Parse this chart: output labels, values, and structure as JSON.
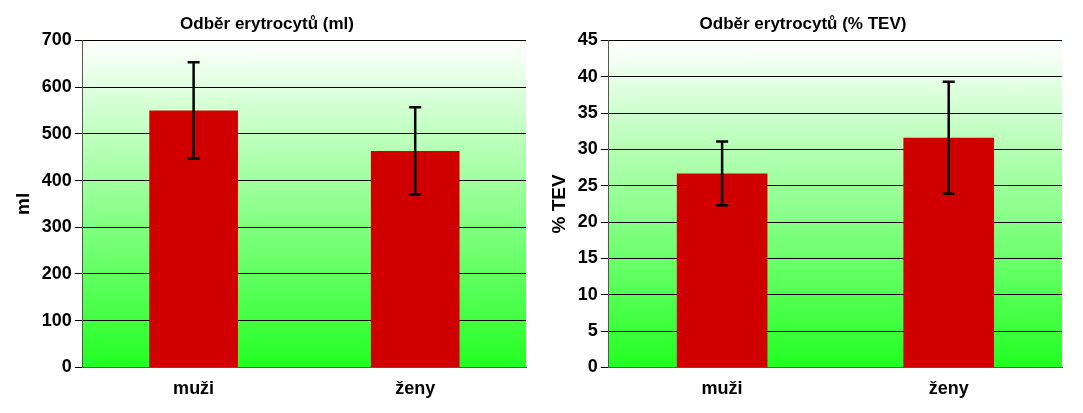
{
  "chart_data": [
    {
      "type": "bar",
      "title": "Odběr erytrocytů (ml)",
      "ylabel": "ml",
      "categories": [
        "muži",
        "ženy"
      ],
      "series": [
        {
          "color": "#d00000",
          "values": [
            550,
            463
          ],
          "errors": [
            [
              447,
              653
            ],
            [
              370,
              557
            ]
          ]
        }
      ],
      "ylim": [
        0,
        700
      ],
      "yticks": [
        0,
        100,
        200,
        300,
        400,
        500,
        600,
        700
      ],
      "grid": "y",
      "legend": false
    },
    {
      "type": "bar",
      "title": "Odběr erytrocytů (% TEV)",
      "ylabel": "% TEV",
      "categories": [
        "muži",
        "ženy"
      ],
      "series": [
        {
          "color": "#d00000",
          "values": [
            26.7,
            31.6
          ],
          "errors": [
            [
              22.3,
              31.1
            ],
            [
              23.9,
              39.3
            ]
          ]
        }
      ],
      "ylim": [
        0,
        45
      ],
      "yticks": [
        0,
        5,
        10,
        15,
        20,
        25,
        30,
        35,
        40,
        45
      ],
      "grid": "y",
      "legend": false
    }
  ]
}
